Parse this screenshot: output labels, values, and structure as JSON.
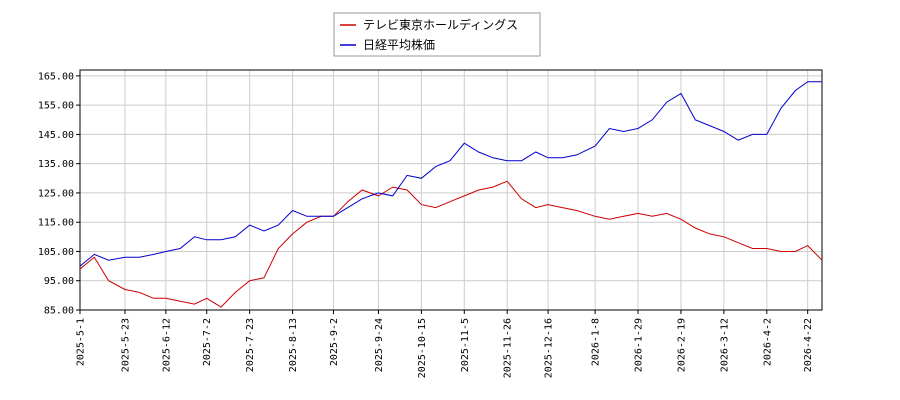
{
  "chart_data": {
    "type": "line",
    "title": "",
    "xlabel": "",
    "ylabel": "",
    "ylim": [
      85,
      167
    ],
    "grid": true,
    "legend_position": "top-center",
    "x_tick_labels": [
      "2025-5-1",
      "2025-5-23",
      "2025-6-12",
      "2025-7-2",
      "2025-7-23",
      "2025-8-13",
      "2025-9-2",
      "2025-9-24",
      "2025-10-15",
      "2025-11-5",
      "2025-11-26",
      "2025-12-16",
      "2026-1-8",
      "2026-1-29",
      "2026-2-19",
      "2026-3-12",
      "2026-4-2",
      "2026-4-22"
    ],
    "y_ticks": [
      85,
      95,
      105,
      115,
      125,
      135,
      145,
      155,
      165
    ],
    "y_tick_labels": [
      "85.00",
      "95.00",
      "105.00",
      "115.00",
      "125.00",
      "135.00",
      "145.00",
      "155.00",
      "165.00"
    ],
    "series": [
      {
        "name": "テレビ東京ホールディングス",
        "color": "#cc0000",
        "x": [
          "2025-5-1",
          "2025-5-8",
          "2025-5-15",
          "2025-5-23",
          "2025-5-30",
          "2025-6-6",
          "2025-6-12",
          "2025-6-19",
          "2025-6-26",
          "2025-7-2",
          "2025-7-9",
          "2025-7-16",
          "2025-7-23",
          "2025-7-30",
          "2025-8-6",
          "2025-8-13",
          "2025-8-20",
          "2025-8-27",
          "2025-9-2",
          "2025-9-9",
          "2025-9-16",
          "2025-9-24",
          "2025-10-1",
          "2025-10-8",
          "2025-10-15",
          "2025-10-22",
          "2025-10-29",
          "2025-11-5",
          "2025-11-12",
          "2025-11-19",
          "2025-11-26",
          "2025-12-3",
          "2025-12-10",
          "2025-12-16",
          "2025-12-23",
          "2025-12-30",
          "2026-1-8",
          "2026-1-15",
          "2026-1-22",
          "2026-1-29",
          "2026-2-5",
          "2026-2-12",
          "2026-2-19",
          "2026-2-26",
          "2026-3-5",
          "2026-3-12",
          "2026-3-19",
          "2026-3-26",
          "2026-4-2",
          "2026-4-9",
          "2026-4-16",
          "2026-4-22",
          "2026-4-29"
        ],
        "values": [
          99,
          103,
          95,
          92,
          91,
          89,
          89,
          88,
          87,
          89,
          86,
          91,
          95,
          96,
          106,
          111,
          115,
          117,
          117,
          122,
          126,
          124,
          127,
          126,
          121,
          120,
          122,
          124,
          126,
          127,
          129,
          123,
          120,
          121,
          120,
          119,
          117,
          116,
          117,
          118,
          117,
          118,
          116,
          113,
          111,
          110,
          108,
          106,
          106,
          105,
          105,
          107,
          102
        ]
      },
      {
        "name": "日経平均株価",
        "color": "#0000cc",
        "x": [
          "2025-5-1",
          "2025-5-8",
          "2025-5-15",
          "2025-5-23",
          "2025-5-30",
          "2025-6-6",
          "2025-6-12",
          "2025-6-19",
          "2025-6-26",
          "2025-7-2",
          "2025-7-9",
          "2025-7-16",
          "2025-7-23",
          "2025-7-30",
          "2025-8-6",
          "2025-8-13",
          "2025-8-20",
          "2025-8-27",
          "2025-9-2",
          "2025-9-9",
          "2025-9-16",
          "2025-9-24",
          "2025-10-1",
          "2025-10-8",
          "2025-10-15",
          "2025-10-22",
          "2025-10-29",
          "2025-11-5",
          "2025-11-12",
          "2025-11-19",
          "2025-11-26",
          "2025-12-3",
          "2025-12-10",
          "2025-12-16",
          "2025-12-23",
          "2025-12-30",
          "2026-1-8",
          "2026-1-15",
          "2026-1-22",
          "2026-1-29",
          "2026-2-5",
          "2026-2-12",
          "2026-2-19",
          "2026-2-26",
          "2026-3-5",
          "2026-3-12",
          "2026-3-19",
          "2026-3-26",
          "2026-4-2",
          "2026-4-9",
          "2026-4-16",
          "2026-4-22",
          "2026-4-29"
        ],
        "values": [
          100,
          104,
          102,
          103,
          103,
          104,
          105,
          106,
          110,
          109,
          109,
          110,
          114,
          112,
          114,
          119,
          117,
          117,
          117,
          120,
          123,
          125,
          124,
          131,
          130,
          134,
          136,
          142,
          139,
          137,
          136,
          136,
          139,
          137,
          137,
          138,
          141,
          147,
          146,
          147,
          150,
          156,
          159,
          150,
          148,
          146,
          143,
          145,
          145,
          154,
          160,
          163,
          163
        ]
      }
    ]
  }
}
